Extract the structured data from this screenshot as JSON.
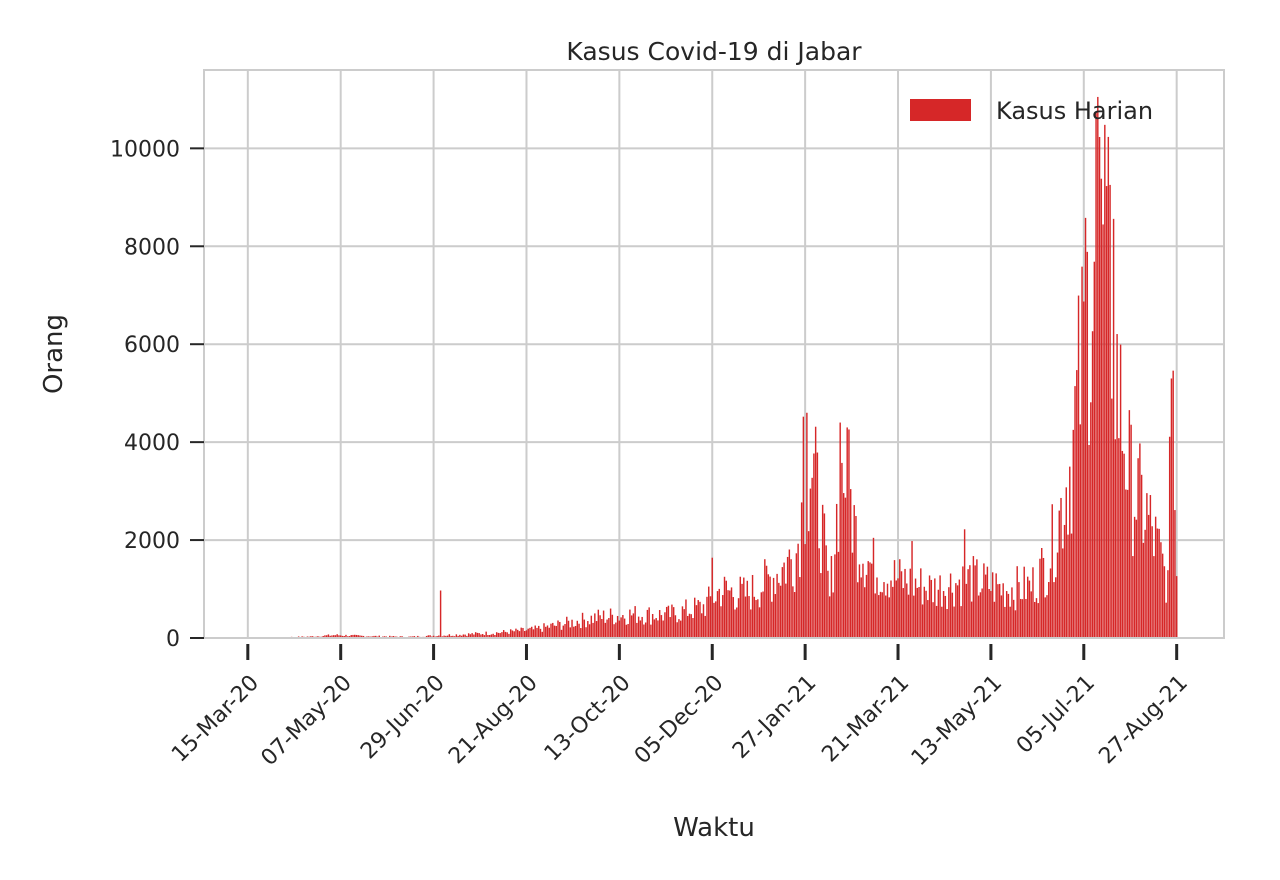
{
  "chart_data": {
    "type": "bar",
    "title": "Kasus Covid-19 di Jabar",
    "xlabel": "Waktu",
    "ylabel": "Orang",
    "ylim": [
      0,
      11600
    ],
    "yticks": [
      0,
      2000,
      4000,
      6000,
      8000,
      10000
    ],
    "ytick_labels": [
      "0",
      "2000",
      "4000",
      "6000",
      "8000",
      "10000"
    ],
    "xlim": [
      "2020-02-19",
      "2021-09-23"
    ],
    "xticks": [
      "2020-03-15",
      "2020-05-07",
      "2020-06-29",
      "2020-08-21",
      "2020-10-13",
      "2020-12-05",
      "2021-01-27",
      "2021-03-21",
      "2021-05-13",
      "2021-07-05",
      "2021-08-27"
    ],
    "xtick_labels": [
      "15-Mar-20",
      "07-May-20",
      "29-Jun-20",
      "21-Aug-20",
      "13-Oct-20",
      "05-Dec-20",
      "27-Jan-21",
      "21-Mar-21",
      "13-May-21",
      "05-Jul-21",
      "27-Aug-21"
    ],
    "grid": true,
    "legend": {
      "position": "top-right",
      "entries": [
        "Kasus Harian"
      ]
    },
    "colors": {
      "bar": "#d62728",
      "grid": "#cccccc",
      "spine": "#cccccc",
      "text": "#262626"
    },
    "series": [
      {
        "name": "Kasus Harian",
        "start_date": "2020-03-01",
        "key_points": [
          [
            "2020-03-01",
            0
          ],
          [
            "2020-03-31",
            10
          ],
          [
            "2020-04-20",
            30
          ],
          [
            "2020-05-04",
            60
          ],
          [
            "2020-05-20",
            40
          ],
          [
            "2020-06-15",
            25
          ],
          [
            "2020-07-01",
            50
          ],
          [
            "2020-07-20",
            80
          ],
          [
            "2020-08-05",
            110
          ],
          [
            "2020-08-25",
            170
          ],
          [
            "2020-09-10",
            280
          ],
          [
            "2020-09-30",
            420
          ],
          [
            "2020-10-20",
            480
          ],
          [
            "2020-11-10",
            470
          ],
          [
            "2020-11-30",
            640
          ],
          [
            "2020-12-10",
            980
          ],
          [
            "2020-12-25",
            880
          ],
          [
            "2021-01-05",
            1150
          ],
          [
            "2021-01-15",
            1450
          ],
          [
            "2021-01-22",
            1750
          ],
          [
            "2021-01-27",
            3000
          ],
          [
            "2021-01-30",
            3700
          ],
          [
            "2021-02-05",
            2400
          ],
          [
            "2021-02-10",
            800
          ],
          [
            "2021-02-15",
            2900
          ],
          [
            "2021-02-19",
            3500
          ],
          [
            "2021-02-25",
            2100
          ],
          [
            "2021-03-05",
            1500
          ],
          [
            "2021-03-21",
            1200
          ],
          [
            "2021-04-10",
            1000
          ],
          [
            "2021-05-01",
            1200
          ],
          [
            "2021-05-20",
            1000
          ],
          [
            "2021-06-05",
            1050
          ],
          [
            "2021-06-15",
            1600
          ],
          [
            "2021-06-22",
            2600
          ],
          [
            "2021-06-28",
            3700
          ],
          [
            "2021-07-03",
            5300
          ],
          [
            "2021-07-08",
            7000
          ],
          [
            "2021-07-14",
            8300
          ],
          [
            "2021-07-19",
            7200
          ],
          [
            "2021-07-25",
            5000
          ],
          [
            "2021-08-01",
            3100
          ],
          [
            "2021-08-10",
            2500
          ],
          [
            "2021-08-18",
            1600
          ],
          [
            "2021-08-22",
            1100
          ],
          [
            "2021-08-24",
            4600
          ],
          [
            "2021-08-26",
            4000
          ],
          [
            "2021-08-27",
            1300
          ]
        ],
        "spikes": [
          [
            "2020-07-03",
            970
          ],
          [
            "2020-12-05",
            1640
          ],
          [
            "2021-01-26",
            4520
          ],
          [
            "2021-01-28",
            4600
          ],
          [
            "2021-02-16",
            4400
          ],
          [
            "2021-02-20",
            4300
          ],
          [
            "2021-03-29",
            1980
          ],
          [
            "2021-04-28",
            2220
          ],
          [
            "2021-07-06",
            8580
          ],
          [
            "2021-07-12",
            10750
          ],
          [
            "2021-07-13",
            11050
          ],
          [
            "2021-07-17",
            10480
          ],
          [
            "2021-07-15",
            9380
          ],
          [
            "2021-07-22",
            8560
          ],
          [
            "2021-08-24",
            5300
          ],
          [
            "2021-08-25",
            5460
          ]
        ]
      }
    ]
  }
}
